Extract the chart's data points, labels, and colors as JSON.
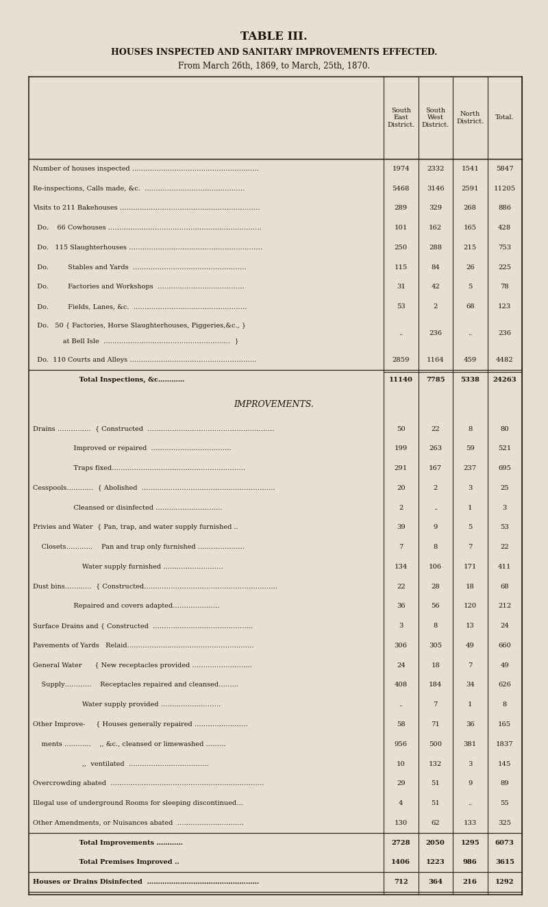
{
  "title": "TABLE III.",
  "subtitle": "HOUSES INSPECTED AND SANITARY IMPROVEMENTS EFFECTED.",
  "date_range": "From March 26th, 1869, to March, 25th, 1870.",
  "col_headers": [
    "South\nEast\nDistrict.",
    "South\nWest\nDistrict.",
    "North\nDistrict.",
    "Total."
  ],
  "bg_color": "#e8dfd0",
  "text_color": "#1a1208",
  "rows": [
    {
      "label": "Number of houses inspected …………………………………………………",
      "values": [
        "1974",
        "2332",
        "1541",
        "5847"
      ],
      "top_line": true,
      "bold": false
    },
    {
      "label": "Re-inspections, Calls made, &c.  ………………………………………",
      "values": [
        "5468",
        "3146",
        "2591",
        "11205"
      ],
      "top_line": false,
      "bold": false
    },
    {
      "label": "Visits to 211 Bakehouses ………………………………………………………",
      "values": [
        "289",
        "329",
        "268",
        "886"
      ],
      "top_line": false,
      "bold": false
    },
    {
      "label": "  Do.    66 Cowhouses ……………………………………………………………",
      "values": [
        "101",
        "162",
        "165",
        "428"
      ],
      "top_line": false,
      "bold": false
    },
    {
      "label": "  Do.   115 Slaughterhouses ……………………………………………………",
      "values": [
        "250",
        "288",
        "215",
        "753"
      ],
      "top_line": false,
      "bold": false
    },
    {
      "label": "  Do.         Stables and Yards  ……………………………………………",
      "values": [
        "115",
        "84",
        "26",
        "225"
      ],
      "top_line": false,
      "bold": false
    },
    {
      "label": "  Do.         Factories and Workshops  …………………………………",
      "values": [
        "31",
        "42",
        "5",
        "78"
      ],
      "top_line": false,
      "bold": false
    },
    {
      "label": "  Do.         Fields, Lanes, &c.  ……………………………………………",
      "values": [
        "53",
        "2",
        "68",
        "123"
      ],
      "top_line": false,
      "bold": false
    },
    {
      "label_line1": "  Do.   50 { Factories, Horse Slaughterhouses, Piggeries,&c., }",
      "label_line2": "              at Bell Isle  …………………………………………………  }",
      "values": [
        "..",
        "236",
        "..",
        "236"
      ],
      "top_line": false,
      "bold": false,
      "multiline": true
    },
    {
      "label": "  Do.  110 Courts and Alleys …………………………………………………",
      "values": [
        "2859",
        "1164",
        "459",
        "4482"
      ],
      "top_line": false,
      "bold": false
    },
    {
      "label": "                    Total Inspections, &c…………",
      "values": [
        "11140",
        "7785",
        "5338",
        "24263"
      ],
      "top_line": true,
      "double_line": true,
      "bold": true
    },
    {
      "label": "IMPROVEMENTS.",
      "values": [
        "",
        "",
        "",
        ""
      ],
      "section_header": true
    },
    {
      "label": "Drains ……………  { Constructed  …………………………………………………",
      "values": [
        "50",
        "22",
        "8",
        "80"
      ],
      "top_line": false,
      "bold": false
    },
    {
      "label": "                   Improved or repaired  ………………………………",
      "values": [
        "199",
        "263",
        "59",
        "521"
      ],
      "top_line": false,
      "bold": false
    },
    {
      "label": "                   Traps fixed……………………………………………………",
      "values": [
        "291",
        "167",
        "237",
        "695"
      ],
      "top_line": false,
      "bold": false
    },
    {
      "label": "Cesspools…………  { Abolished  ……………………………………………………",
      "values": [
        "20",
        "2",
        "3",
        "25"
      ],
      "top_line": false,
      "bold": false
    },
    {
      "label": "                   Cleansed or disinfected …………………………",
      "values": [
        "2",
        "..",
        "1",
        "3"
      ],
      "top_line": false,
      "bold": false
    },
    {
      "label": "Privies and Water  { Pan, trap, and water supply furnished ..",
      "values": [
        "39",
        "9",
        "5",
        "53"
      ],
      "top_line": false,
      "bold": false
    },
    {
      "label": "    Closets…………    Pan and trap only furnished …………………",
      "values": [
        "7",
        "8",
        "7",
        "22"
      ],
      "top_line": false,
      "bold": false
    },
    {
      "label": "                       Water supply furnished ………………………",
      "values": [
        "134",
        "106",
        "171",
        "411"
      ],
      "top_line": false,
      "bold": false
    },
    {
      "label": "Dust bins…………  { Constructed……………………………………………………",
      "values": [
        "22",
        "28",
        "18",
        "68"
      ],
      "top_line": false,
      "bold": false
    },
    {
      "label": "                   Repaired and covers adapted…………………",
      "values": [
        "36",
        "56",
        "120",
        "212"
      ],
      "top_line": false,
      "bold": false
    },
    {
      "label": "Surface Drains and { Constructed  ………………………………………",
      "values": [
        "3",
        "8",
        "13",
        "24"
      ],
      "top_line": false,
      "bold": false
    },
    {
      "label": "Pavements of Yards   Relaid…………………………………………………",
      "values": [
        "306",
        "305",
        "49",
        "660"
      ],
      "top_line": false,
      "bold": false
    },
    {
      "label": "General Water      { New receptacles provided ………………………",
      "values": [
        "24",
        "18",
        "7",
        "49"
      ],
      "top_line": false,
      "bold": false
    },
    {
      "label": "    Supply…………    Receptacles repaired and cleansed………",
      "values": [
        "408",
        "184",
        "34",
        "626"
      ],
      "top_line": false,
      "bold": false
    },
    {
      "label": "                       Water supply provided ………………………",
      "values": [
        "..",
        "7",
        "1",
        "8"
      ],
      "top_line": false,
      "bold": false
    },
    {
      "label": "Other Improve-     { Houses generally repaired ……………………",
      "values": [
        "58",
        "71",
        "36",
        "165"
      ],
      "top_line": false,
      "bold": false
    },
    {
      "label": "    ments …………    ,, &c., cleansed or limewashed ………",
      "values": [
        "956",
        "500",
        "381",
        "1837"
      ],
      "top_line": false,
      "bold": false
    },
    {
      "label": "                       ,,  ventilated  ………………………………",
      "values": [
        "10",
        "132",
        "3",
        "145"
      ],
      "top_line": false,
      "bold": false
    },
    {
      "label": "Overcrowding abated  ……………………………………………………………",
      "values": [
        "29",
        "51",
        "9",
        "89"
      ],
      "top_line": false,
      "bold": false
    },
    {
      "label": "Illegal use of underground Rooms for sleeping discontinued…",
      "values": [
        "4",
        "51",
        "..",
        "55"
      ],
      "top_line": false,
      "bold": false
    },
    {
      "label": "Other Amendments, or Nuisances abated  …………………………",
      "values": [
        "130",
        "62",
        "133",
        "325"
      ],
      "top_line": false,
      "bold": false
    },
    {
      "label": "                    Total Improvements …………",
      "values": [
        "2728",
        "2050",
        "1295",
        "6073"
      ],
      "top_line": true,
      "bold": true
    },
    {
      "label": "                    Total Premises Improved ..",
      "values": [
        "1406",
        "1223",
        "986",
        "3615"
      ],
      "top_line": false,
      "bold": true
    },
    {
      "label": "Houses or Drains Disinfected  ……………………………………………",
      "values": [
        "712",
        "364",
        "216",
        "1292"
      ],
      "top_line": true,
      "bottom_line": true,
      "bold": true
    }
  ]
}
